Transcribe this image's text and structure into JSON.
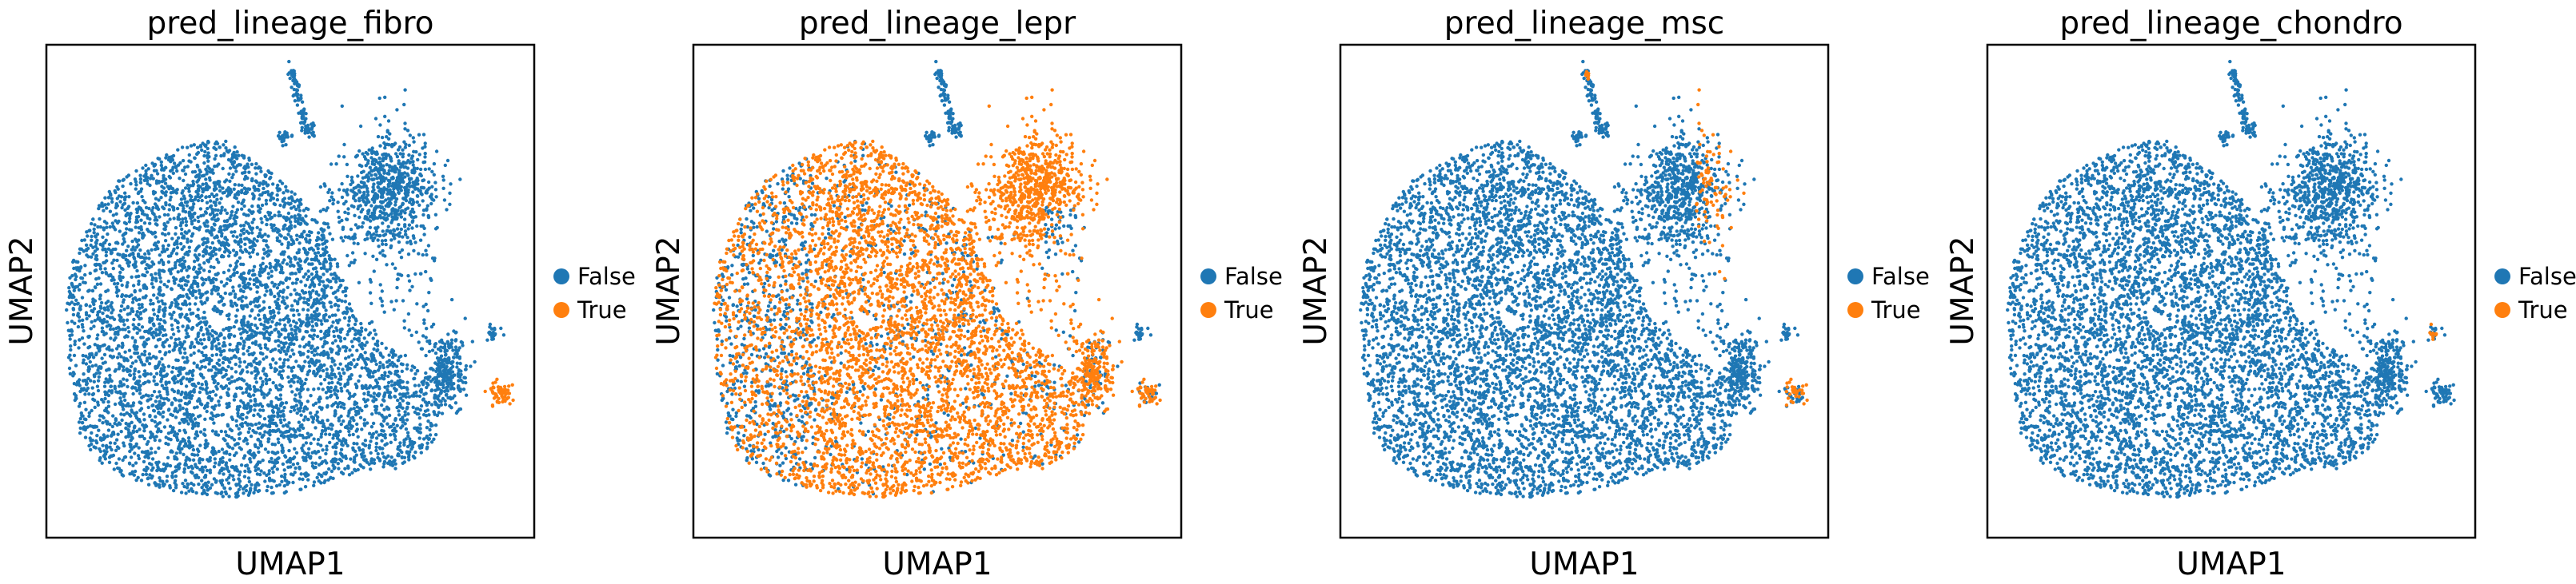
{
  "figure": {
    "xlabel": "UMAP1",
    "ylabel": "UMAP2"
  },
  "legend": {
    "entries": [
      {
        "label": "False",
        "color": "#1f77b4"
      },
      {
        "label": "True",
        "color": "#ff7f0e"
      }
    ]
  },
  "chart_data": [
    {
      "type": "scatter",
      "title": "pred_lineage_fibro",
      "xlabel": "UMAP1",
      "ylabel": "UMAP2",
      "legend_position": "right",
      "grid": false,
      "series": [
        {
          "name": "False",
          "color": "#1f77b4"
        },
        {
          "name": "True",
          "color": "#ff7f0e"
        }
      ],
      "true_regions": [
        "bottom-right tip"
      ]
    },
    {
      "type": "scatter",
      "title": "pred_lineage_lepr",
      "xlabel": "UMAP1",
      "ylabel": "UMAP2",
      "legend_position": "right",
      "grid": false,
      "series": [
        {
          "name": "False",
          "color": "#1f77b4"
        },
        {
          "name": "True",
          "color": "#ff7f0e"
        }
      ],
      "true_regions": [
        "main cluster",
        "upper-right cluster",
        "lower-right arm",
        "bottom-right tip"
      ]
    },
    {
      "type": "scatter",
      "title": "pred_lineage_msc",
      "xlabel": "UMAP1",
      "ylabel": "UMAP2",
      "legend_position": "right",
      "grid": false,
      "series": [
        {
          "name": "False",
          "color": "#1f77b4"
        },
        {
          "name": "True",
          "color": "#ff7f0e"
        }
      ],
      "true_regions": [
        "upper-right cluster edge",
        "bottom-right tip"
      ]
    },
    {
      "type": "scatter",
      "title": "pred_lineage_chondro",
      "xlabel": "UMAP1",
      "ylabel": "UMAP2",
      "legend_position": "right",
      "grid": false,
      "series": [
        {
          "name": "False",
          "color": "#1f77b4"
        },
        {
          "name": "True",
          "color": "#ff7f0e"
        }
      ],
      "true_regions": [
        "small right tip"
      ]
    }
  ]
}
